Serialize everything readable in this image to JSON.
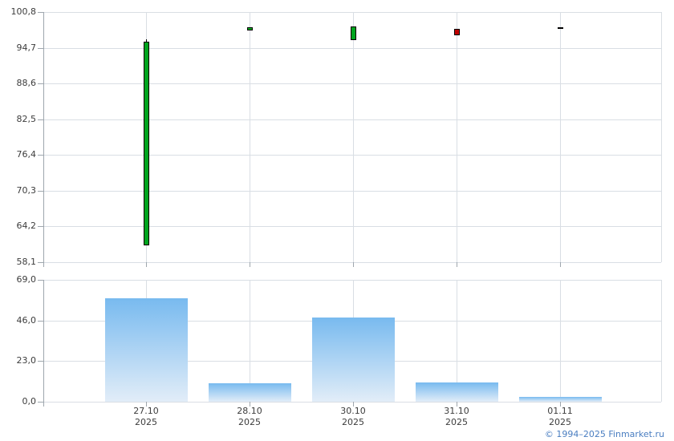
{
  "colors": {
    "up": "#00a41e",
    "down": "#c00000",
    "flat": "#000000",
    "candle_border": "#000000",
    "grid": "#d9dee4",
    "axis": "#9ea6ad",
    "label": "#3c3c3c",
    "bar_gradient_top": "#78baef",
    "bar_gradient_bottom": "#e2edf8",
    "copyright_blue": "#4a7ec1"
  },
  "chart_data": [
    {
      "type": "candlestick",
      "title": "",
      "xlabel": "",
      "ylabel": "",
      "grid": true,
      "ylim": [
        58.1,
        100.8
      ],
      "y_ticks": [
        100.8,
        94.7,
        88.6,
        82.5,
        76.4,
        70.3,
        64.2,
        58.1
      ],
      "y_tick_labels": [
        "100,8",
        "94,7",
        "88,6",
        "82,5",
        "76,4",
        "70,3",
        "64,2",
        "58,1"
      ],
      "x": [
        "27.10.2025",
        "28.10.2025",
        "30.10.2025",
        "31.10.2025",
        "01.11.2025"
      ],
      "series": [
        {
          "name": "price-ohlc",
          "points": [
            {
              "date": "27.10.2025",
              "open": 60.9,
              "high": 96.1,
              "low": 60.9,
              "close": 95.7,
              "direction": "up"
            },
            {
              "date": "28.10.2025",
              "open": 97.6,
              "high": 98.2,
              "low": 97.6,
              "close": 98.2,
              "direction": "up"
            },
            {
              "date": "30.10.2025",
              "open": 96.0,
              "high": 98.3,
              "low": 96.0,
              "close": 98.3,
              "direction": "up"
            },
            {
              "date": "31.10.2025",
              "open": 97.9,
              "high": 97.9,
              "low": 96.8,
              "close": 96.8,
              "direction": "down"
            },
            {
              "date": "01.11.2025",
              "open": 98.0,
              "high": 98.0,
              "low": 98.0,
              "close": 98.0,
              "direction": "flat"
            }
          ]
        }
      ]
    },
    {
      "type": "bar",
      "title": "",
      "xlabel": "",
      "ylabel": "",
      "grid": true,
      "ylim": [
        0,
        69
      ],
      "y_ticks": [
        69.0,
        46.0,
        23.0,
        0.0
      ],
      "y_tick_labels": [
        "69,0",
        "46,0",
        "23,0",
        "0,0"
      ],
      "categories": [
        "27.10.2025",
        "28.10.2025",
        "30.10.2025",
        "31.10.2025",
        "01.11.2025"
      ],
      "x_tick_labels": [
        [
          "27.10",
          "2025"
        ],
        [
          "28.10",
          "2025"
        ],
        [
          "30.10",
          "2025"
        ],
        [
          "31.10",
          "2025"
        ],
        [
          "01.11",
          "2025"
        ]
      ],
      "values": [
        58.6,
        10.3,
        47.7,
        10.7,
        2.5
      ]
    }
  ],
  "footer": {
    "copyright": "© 1994–2025 Finmarket.ru"
  }
}
